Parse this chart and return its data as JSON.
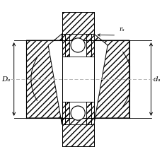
{
  "bg_color": "#ffffff",
  "line_color": "#000000",
  "center_line_color": "#b0b0b0",
  "label_Da": "Dₐ",
  "label_da": "dₐ",
  "label_ra": "rₐ",
  "figsize": [
    2.3,
    2.26
  ],
  "dpi": 100,
  "xlim": [
    -1.3,
    1.45
  ],
  "ylim": [
    -1.25,
    1.25
  ]
}
